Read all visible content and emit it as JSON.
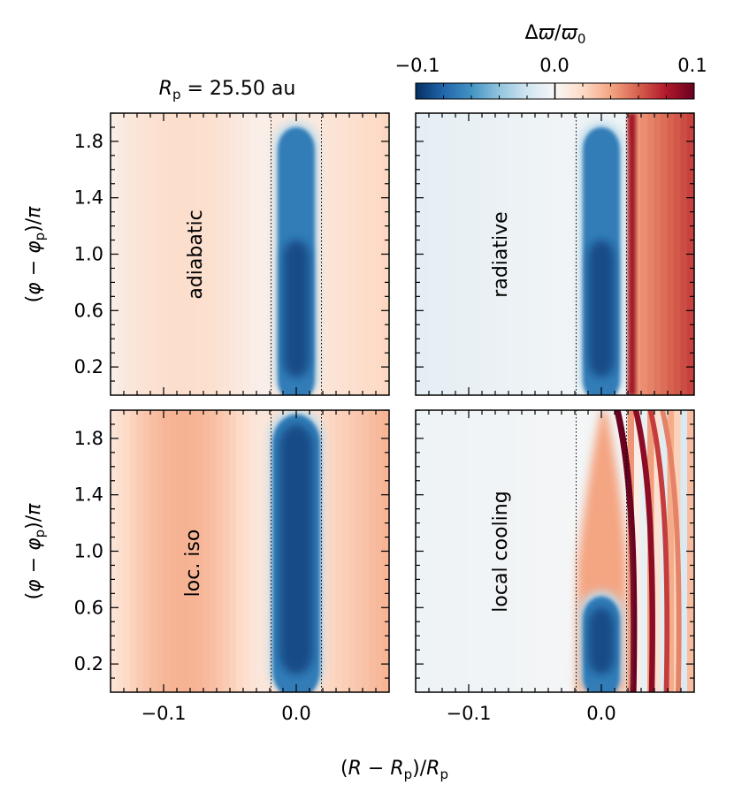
{
  "chart_data": {
    "type": "heatmap",
    "title": "R_p = 25.50 au",
    "title_parts": {
      "sym": "R",
      "sub": "p",
      "rest": " = 25.50 au"
    },
    "xlabel": "(R − R_p)/R_p",
    "xlabel_parts": {
      "pre": "(",
      "sym": "R",
      "mid": " − ",
      "sym2": "R",
      "sub": "p",
      "mid2": ")/",
      "sym3": "R",
      "sub2": "p"
    },
    "ylabel": "(φ − φ_p)/π",
    "ylabel_parts": {
      "pre": "(",
      "sym": "φ",
      "mid": " − ",
      "sym2": "φ",
      "sub": "p",
      "post": ")/",
      "sym3": "π"
    },
    "xlim": [
      -0.14,
      0.07
    ],
    "ylim": [
      0.0,
      2.0
    ],
    "x_ticks": [
      -0.1,
      0.0
    ],
    "x_tick_labels": [
      "−0.1",
      "0.0"
    ],
    "y_ticks": [
      0.2,
      0.6,
      1.0,
      1.4,
      1.8
    ],
    "y_tick_labels": [
      "0.2",
      "0.6",
      "1.0",
      "1.4",
      "1.8"
    ],
    "dotted_lines_x": [
      -0.019,
      0.019
    ],
    "colorbar": {
      "label": "Δϖ/ϖ0",
      "label_parts": {
        "delta": "Δ",
        "sym": "ϖ",
        "slash": "/",
        "sym2": "ϖ",
        "sub": "0"
      },
      "vmin": -0.1,
      "vmax": 0.1,
      "ticks": [
        -0.1,
        0.0,
        0.1
      ],
      "tick_labels": [
        "−0.1",
        "0.0",
        "0.1"
      ],
      "colormap": "RdBu_r",
      "color_stops": [
        "#053061",
        "#2166ac",
        "#4393c3",
        "#92c5de",
        "#d1e5f0",
        "#f7f7f7",
        "#fddbc7",
        "#f4a582",
        "#d6604d",
        "#b2182b",
        "#67001f"
      ]
    },
    "panels": [
      {
        "label": "adiabatic",
        "background": 0.025,
        "inner_background": 0.018,
        "outer_background": 0.022,
        "blob": "tall"
      },
      {
        "label": "radiative",
        "background": -0.012,
        "inner_background": -0.01,
        "outer_background": 0.07,
        "blob": "tall"
      },
      {
        "label": "loc. iso",
        "background": 0.04,
        "inner_background": 0.035,
        "outer_background": 0.035,
        "blob": "full"
      },
      {
        "label": "local cooling",
        "background": -0.005,
        "inner_background": -0.005,
        "outer_background": 0.02,
        "blob": "short"
      }
    ]
  }
}
